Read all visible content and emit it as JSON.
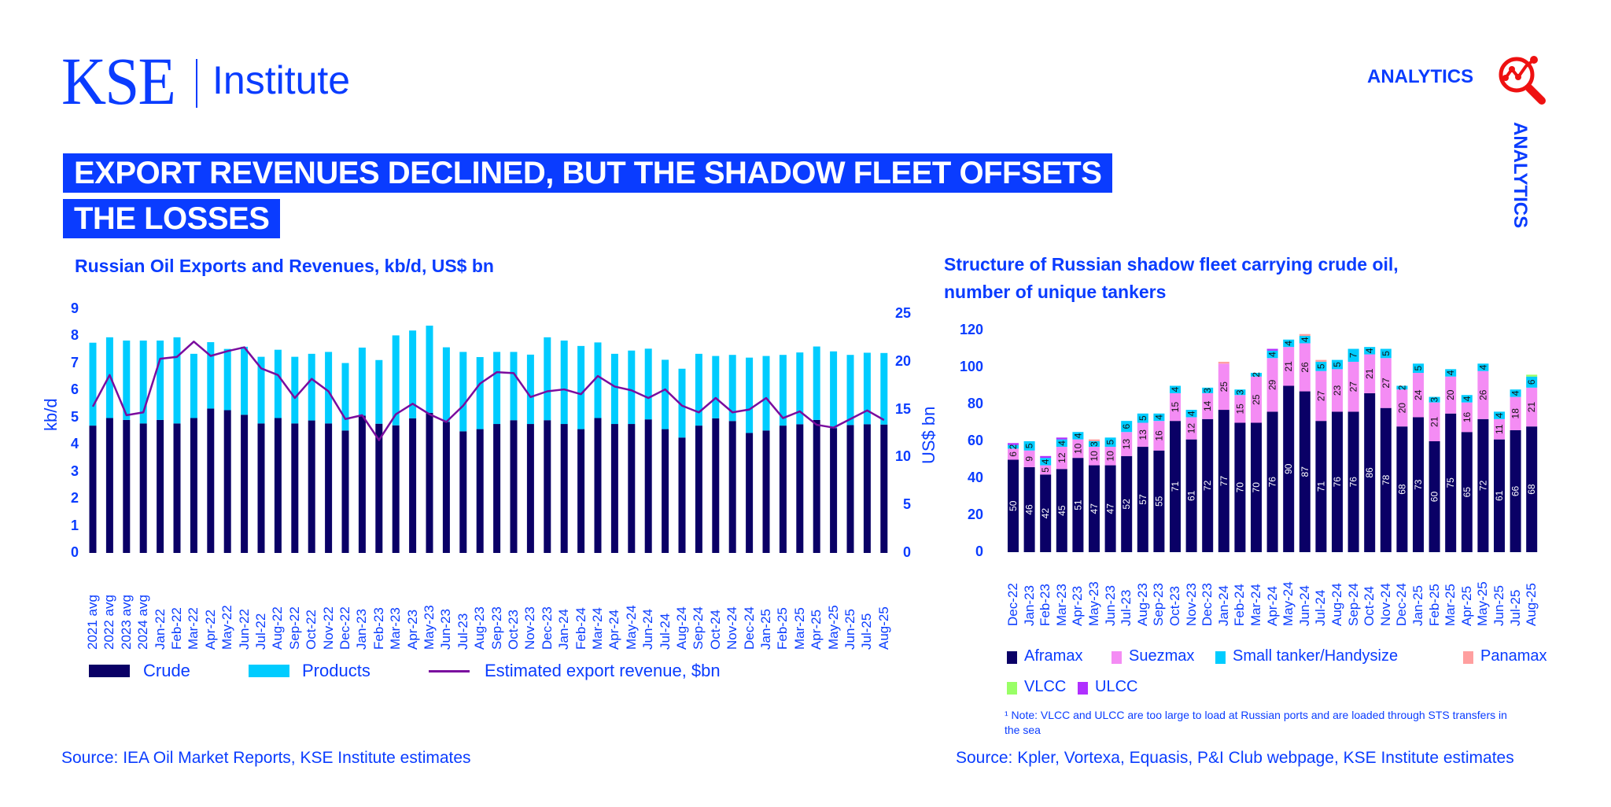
{
  "header": {
    "logo_kse": "KSE",
    "logo_institute": "Institute",
    "analytics_label": "ANALYTICS",
    "analytics_vertical": "ANALYTICS",
    "analytics_icon": "magnifier-chart-icon"
  },
  "banner": {
    "line1": "EXPORT REVENUES DECLINED, BUT THE SHADOW FLEET OFFSETS",
    "line2": "THE LOSSES"
  },
  "colors": {
    "brand": "#0a3cff",
    "crude": "#0a0066",
    "products": "#00ccff",
    "revenue_line": "#7a0c9e",
    "aframax": "#0a0066",
    "suezmax": "#f48cf4",
    "small": "#00ccff",
    "panamax": "#ff9f9f",
    "vlcc": "#99ff66",
    "ulcc": "#b030ff",
    "icon_red": "#ee1111"
  },
  "chart_data": [
    {
      "type": "bar",
      "subtype": "stacked-bar-with-line",
      "title": "Russian Oil Exports and Revenues, kb/d, US$ bn",
      "ylabel": "kb/d",
      "y2label": "US$ bn",
      "ylim": [
        0,
        9
      ],
      "y2lim": [
        0,
        25
      ],
      "yticks": [
        "0",
        "1",
        "2",
        "3",
        "4",
        "5",
        "6",
        "7",
        "8",
        "9"
      ],
      "y2ticks": [
        "0",
        "5",
        "10",
        "15",
        "20",
        "25"
      ],
      "grid": false,
      "legend_position": "bottom",
      "categories": [
        "2021 avg",
        "2022 avg",
        "2023 avg",
        "2024 avg",
        "Jan-22",
        "Feb-22",
        "Mar-22",
        "Apr-22",
        "May-22",
        "Jun-22",
        "Jul-22",
        "Aug-22",
        "Sep-22",
        "Oct-22",
        "Nov-22",
        "Dec-22",
        "Jan-23",
        "Feb-23",
        "Mar-23",
        "Apr-23",
        "May-23",
        "Jun-23",
        "Jul-23",
        "Aug-23",
        "Sep-23",
        "Oct-23",
        "Nov-23",
        "Dec-23",
        "Jan-24",
        "Feb-24",
        "Mar-24",
        "Apr-24",
        "May-24",
        "Jun-24",
        "Jul-24",
        "Aug-24",
        "Sep-24",
        "Oct-24",
        "Nov-24",
        "Dec-24",
        "Jan-25",
        "Feb-25",
        "Mar-25",
        "Apr-25",
        "May-25",
        "Jun-25",
        "Jul-25",
        "Aug-25"
      ],
      "series": [
        {
          "name": "Crude",
          "kind": "bar",
          "axis": "left",
          "values": [
            4.7,
            4.98,
            4.91,
            4.78,
            4.91,
            4.78,
            4.98,
            5.33,
            5.27,
            5.1,
            4.78,
            4.98,
            4.78,
            4.89,
            4.78,
            4.52,
            5.07,
            4.77,
            4.71,
            4.97,
            5.17,
            4.84,
            4.49,
            4.57,
            4.76,
            4.9,
            4.76,
            4.9,
            4.76,
            4.57,
            4.98,
            4.76,
            4.76,
            4.93,
            4.57,
            4.26,
            4.7,
            4.97,
            4.87,
            4.43,
            4.52,
            4.7,
            4.75,
            4.91,
            4.61,
            4.72,
            4.75,
            4.74
          ]
        },
        {
          "name": "Products",
          "kind": "bar",
          "axis": "left",
          "values": [
            3.06,
            2.98,
            2.93,
            3.06,
            2.93,
            3.18,
            2.37,
            2.45,
            2.26,
            2.51,
            2.46,
            2.52,
            2.46,
            2.46,
            2.64,
            2.49,
            2.51,
            2.35,
            3.32,
            3.24,
            3.22,
            2.75,
            2.93,
            2.66,
            2.66,
            2.52,
            2.56,
            3.06,
            3.08,
            3.07,
            2.79,
            2.59,
            2.71,
            2.61,
            2.56,
            2.54,
            2.65,
            2.3,
            2.44,
            2.78,
            2.75,
            2.61,
            2.65,
            2.71,
            2.83,
            2.59,
            2.64,
            2.64
          ]
        },
        {
          "name": "Estimated export revenue, $bn",
          "kind": "line",
          "axis": "right",
          "values": [
            15.3,
            18.6,
            14.4,
            14.7,
            20.3,
            20.5,
            22.1,
            20.6,
            21.1,
            21.5,
            19.3,
            18.6,
            16.2,
            18.2,
            16.9,
            14.0,
            14.4,
            11.8,
            14.5,
            15.6,
            14.5,
            13.7,
            15.4,
            17.7,
            18.9,
            18.8,
            16.3,
            16.9,
            17.1,
            16.6,
            18.5,
            17.4,
            17.0,
            16.2,
            17.1,
            15.4,
            14.7,
            16.2,
            14.7,
            15.0,
            16.2,
            14.1,
            14.8,
            13.4,
            13.1,
            14.0,
            14.9,
            13.9
          ]
        }
      ],
      "legend": [
        "Crude",
        "Products",
        "Estimated export revenue, $bn"
      ],
      "source": "Source: IEA Oil Market Reports, KSE Institute estimates"
    },
    {
      "type": "bar",
      "subtype": "stacked-bar",
      "title": "Structure of Russian shadow fleet carrying crude oil, number of unique tankers",
      "title_lines": [
        "Structure of Russian shadow fleet carrying crude oil,",
        "number of unique tankers"
      ],
      "ylim": [
        0,
        120
      ],
      "yticks": [
        "0",
        "20",
        "40",
        "60",
        "80",
        "100",
        "120"
      ],
      "grid": false,
      "legend_position": "bottom",
      "categories": [
        "Dec-22",
        "Jan-23",
        "Feb-23",
        "Mar-23",
        "Apr-23",
        "May-23",
        "Jun-23",
        "Jul-23",
        "Aug-23",
        "Sep-23",
        "Oct-23",
        "Nov-23",
        "Dec-23",
        "Jan-24",
        "Feb-24",
        "Mar-24",
        "Apr-24",
        "May-24",
        "Jun-24",
        "Jul-24",
        "Aug-24",
        "Sep-24",
        "Oct-24",
        "Nov-24",
        "Dec-24",
        "Jan-25",
        "Feb-25",
        "Mar-25",
        "Apr-25",
        "May-25",
        "Jun-25",
        "Jul-25",
        "Aug-25"
      ],
      "series": [
        {
          "name": "Aframax",
          "values": [
            50,
            46,
            42,
            45,
            51,
            47,
            47,
            52,
            57,
            55,
            71,
            61,
            72,
            77,
            70,
            70,
            76,
            90,
            87,
            71,
            76,
            76,
            86,
            78,
            68,
            73,
            60,
            75,
            65,
            72,
            61,
            66,
            68
          ]
        },
        {
          "name": "Suezmax",
          "values": [
            6,
            9,
            5,
            12,
            10,
            10,
            10,
            13,
            13,
            16,
            15,
            12,
            14,
            25,
            15,
            25,
            29,
            21,
            26,
            27,
            23,
            27,
            21,
            27,
            20,
            24,
            21,
            20,
            16,
            26,
            11,
            18,
            21
          ]
        },
        {
          "name": "Small tanker/Handysize",
          "values": [
            2,
            5,
            4,
            4,
            4,
            3,
            5,
            6,
            5,
            4,
            4,
            4,
            3,
            0,
            3,
            2,
            4,
            4,
            4,
            5,
            5,
            7,
            4,
            5,
            2,
            5,
            3,
            4,
            4,
            4,
            4,
            4,
            6
          ]
        },
        {
          "name": "Panamax",
          "values": [
            0,
            0,
            0,
            0,
            0,
            1,
            0,
            0,
            0,
            0,
            0,
            0,
            0,
            1,
            0,
            0,
            0,
            0,
            1,
            1,
            0,
            0,
            0,
            0,
            0,
            0,
            0,
            0,
            0,
            0,
            0,
            0,
            0
          ]
        },
        {
          "name": "VLCC",
          "values": [
            0,
            0,
            0,
            0,
            0,
            0,
            0,
            0,
            0,
            0,
            0,
            0,
            0,
            0,
            0,
            0,
            0,
            0,
            0,
            0,
            0,
            0,
            0,
            0,
            0,
            0,
            0,
            0,
            0,
            0,
            0,
            0,
            1
          ]
        },
        {
          "name": "ULCC",
          "values": [
            1,
            0,
            1,
            1,
            0,
            0,
            0,
            0,
            0,
            0,
            0,
            0,
            0,
            0,
            0,
            0,
            1,
            0,
            0,
            0,
            0,
            0,
            0,
            0,
            0,
            0,
            0,
            0,
            0,
            0,
            0,
            0,
            0
          ]
        }
      ],
      "legend": [
        "Aframax",
        "Suezmax",
        "Small tanker/Handysize",
        "Panamax",
        "VLCC",
        "ULCC"
      ],
      "note": "¹ Note: VLCC and ULCC are too large to load at Russian ports and are loaded through STS transfers in the sea",
      "source": "Source: Kpler, Vortexa, Equasis, P&I Club webpage, KSE Institute estimates"
    }
  ]
}
